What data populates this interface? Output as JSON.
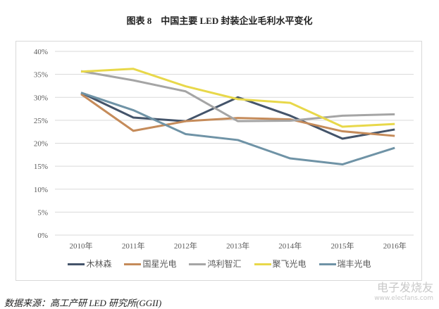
{
  "title": "图表 8　中国主要 LED 封装企业毛利水平变化",
  "source": "数据来源：高工产研 LED 研究所(GGII)",
  "watermark": {
    "name": "电子发烧友",
    "url": "www.elecfans.com"
  },
  "chart_data": {
    "type": "line",
    "title": "图表 8　中国主要 LED 封装企业毛利水平变化",
    "categories": [
      "2010年",
      "2011年",
      "2012年",
      "2013年",
      "2014年",
      "2015年",
      "2016年"
    ],
    "ylim": [
      0,
      40
    ],
    "yticks": [
      "0%",
      "5%",
      "10%",
      "15%",
      "20%",
      "25%",
      "30%",
      "35%",
      "40%"
    ],
    "grid": true,
    "legend": "bottom",
    "series": [
      {
        "name": "木林森",
        "color": "#44546a",
        "values": [
          31.0,
          25.6,
          24.8,
          30.0,
          26.0,
          21.0,
          23.0
        ]
      },
      {
        "name": "国星光电",
        "color": "#c58b5a",
        "values": [
          30.7,
          22.7,
          24.8,
          25.5,
          25.2,
          22.6,
          21.6
        ]
      },
      {
        "name": "鸿利智汇",
        "color": "#a5a5a5",
        "values": [
          35.7,
          33.7,
          31.3,
          24.8,
          24.9,
          26.0,
          26.3
        ]
      },
      {
        "name": "聚飞光电",
        "color": "#e8d84a",
        "values": [
          35.6,
          36.2,
          32.4,
          29.6,
          28.8,
          23.6,
          24.2
        ]
      },
      {
        "name": "瑞丰光电",
        "color": "#6f93a6",
        "values": [
          31.0,
          27.2,
          22.0,
          20.7,
          16.7,
          15.4,
          19.0
        ]
      }
    ]
  }
}
